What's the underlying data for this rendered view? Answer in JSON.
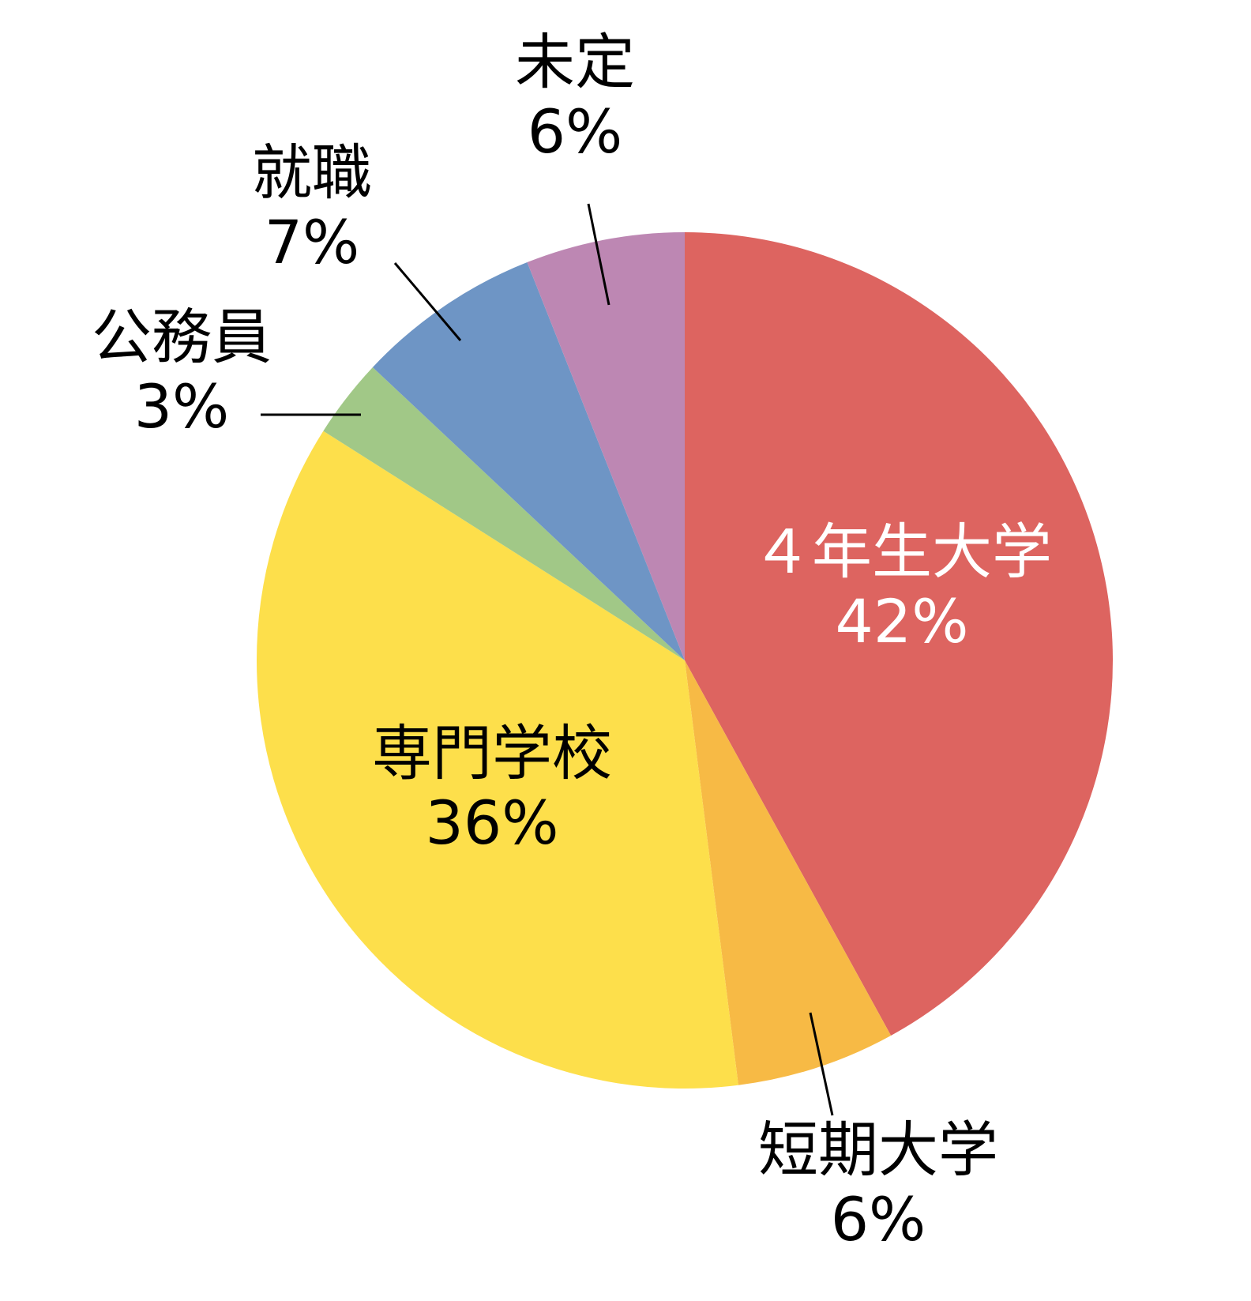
{
  "chart_data": {
    "type": "pie",
    "start": "12 o'clock",
    "direction": "clockwise",
    "slices": [
      {
        "label": "４年生大学",
        "value": 42,
        "value_label": "42%",
        "color": "#DD6460",
        "label_color": "#FFFFFF",
        "label_placement": "inside"
      },
      {
        "label": "短期大学",
        "value": 6,
        "value_label": "6%",
        "color": "#F7BA45",
        "label_color": "#000000",
        "label_placement": "outside"
      },
      {
        "label": "専門学校",
        "value": 36,
        "value_label": "36%",
        "color": "#FDDF4B",
        "label_color": "#000000",
        "label_placement": "inside"
      },
      {
        "label": "公務員",
        "value": 3,
        "value_label": "3%",
        "color": "#A1C887",
        "label_color": "#000000",
        "label_placement": "outside"
      },
      {
        "label": "就職",
        "value": 7,
        "value_label": "7%",
        "color": "#6E95C5",
        "label_color": "#000000",
        "label_placement": "outside"
      },
      {
        "label": "未定",
        "value": 6,
        "value_label": "6%",
        "color": "#BD87B3",
        "label_color": "#000000",
        "label_placement": "outside"
      }
    ]
  }
}
